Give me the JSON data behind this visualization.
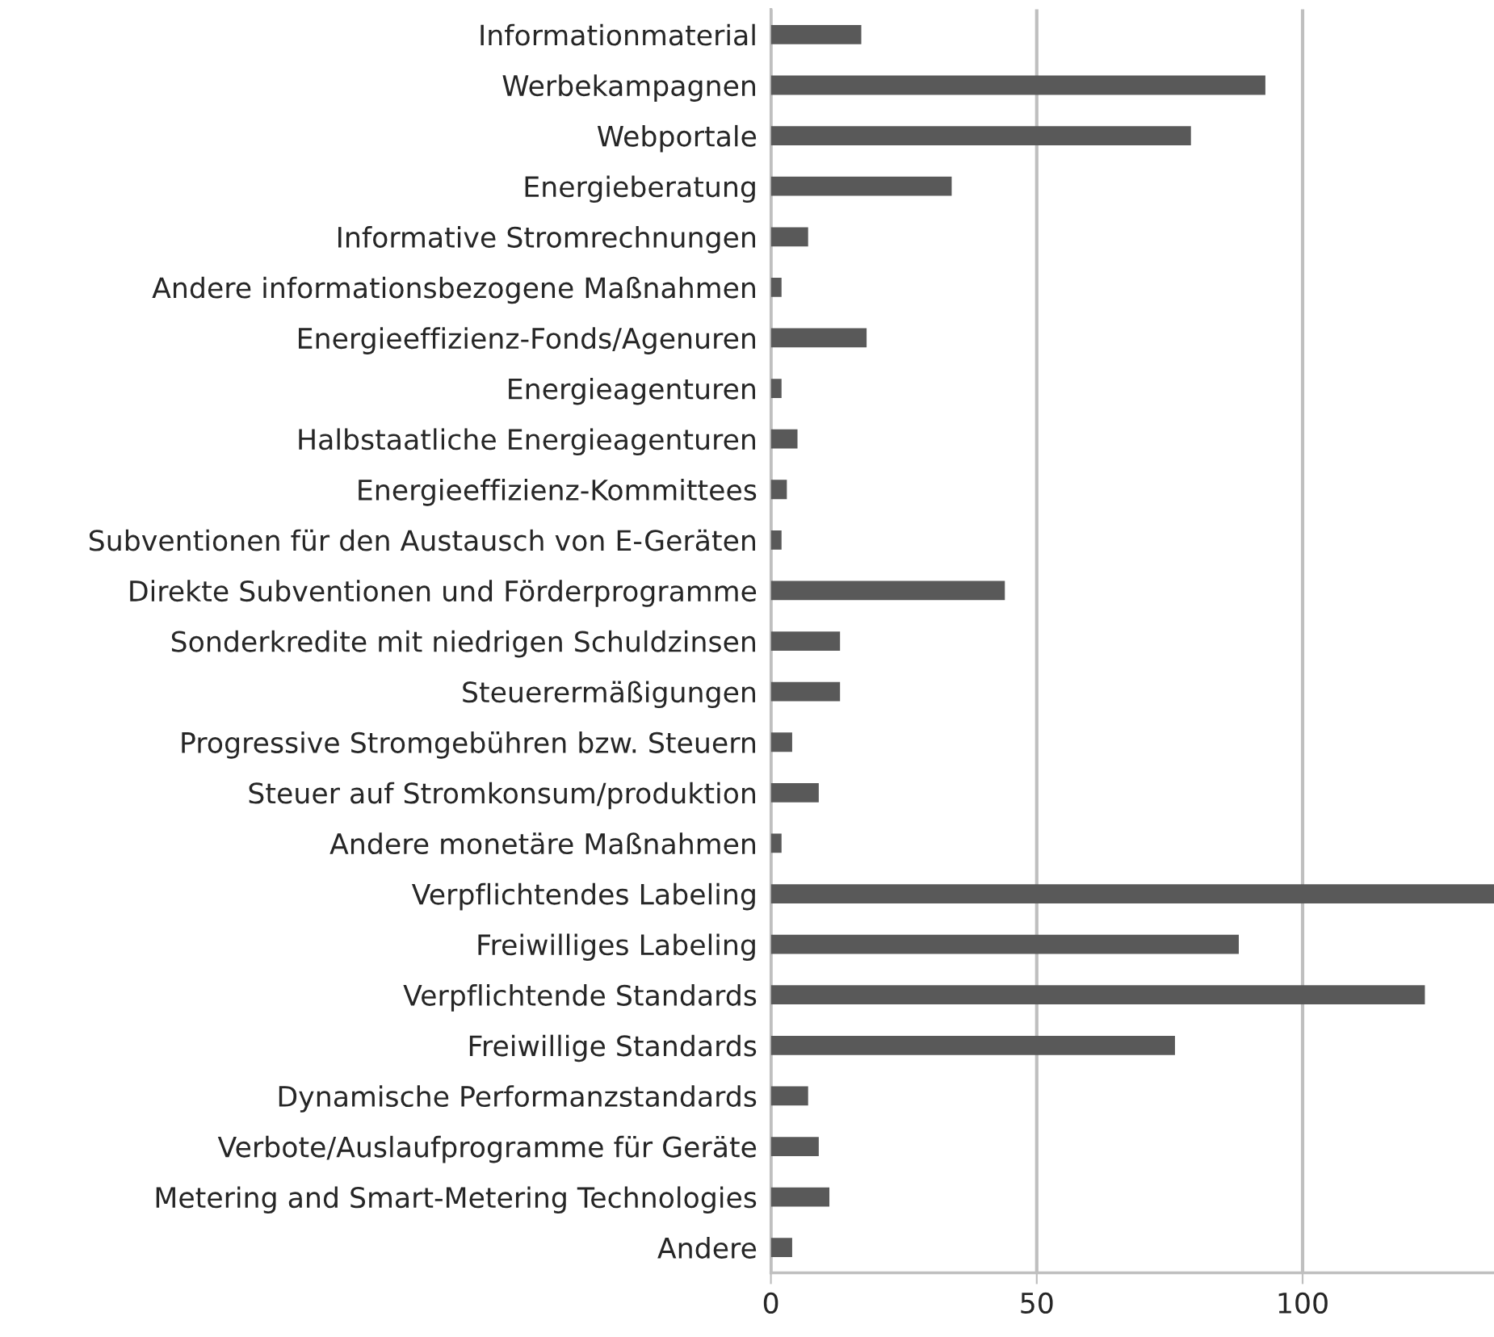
{
  "chart_data": {
    "type": "bar",
    "orientation": "horizontal",
    "categories": [
      "Informationmaterial",
      "Werbekampagnen",
      "Webportale",
      "Energieberatung",
      "Informative Stromrechnungen",
      "Andere informationsbezogene Maßnahmen",
      "Energieeffizienz-Fonds/Agenuren",
      "Energieagenturen",
      "Halbstaatliche Energieagenturen",
      "Energieeffizienz-Kommittees",
      "Subventionen für den Austausch von E-Geräten",
      "Direkte Subventionen und Förderprogramme",
      "Sonderkredite mit niedrigen Schuldzinsen",
      "Steuerermäßigungen",
      "Progressive Stromgebühren bzw. Steuern",
      "Steuer auf Stromkonsum/produktion",
      "Andere monetäre Maßnahmen",
      "Verpflichtendes Labeling",
      "Freiwilliges Labeling",
      "Verpflichtende Standards",
      "Freiwillige Standards",
      "Dynamische Performanzstandards",
      "Verbote/Auslaufprogramme für Geräte",
      "Metering and Smart-Metering Technologies",
      "Andere"
    ],
    "values": [
      17,
      93,
      79,
      34,
      7,
      2,
      18,
      2,
      5,
      3,
      2,
      44,
      13,
      13,
      4,
      9,
      2,
      136,
      88,
      123,
      76,
      7,
      9,
      11,
      4
    ],
    "color": "#595959",
    "xlim": [
      0,
      136
    ],
    "xticks": [
      0,
      50,
      100
    ],
    "grid": "x"
  }
}
